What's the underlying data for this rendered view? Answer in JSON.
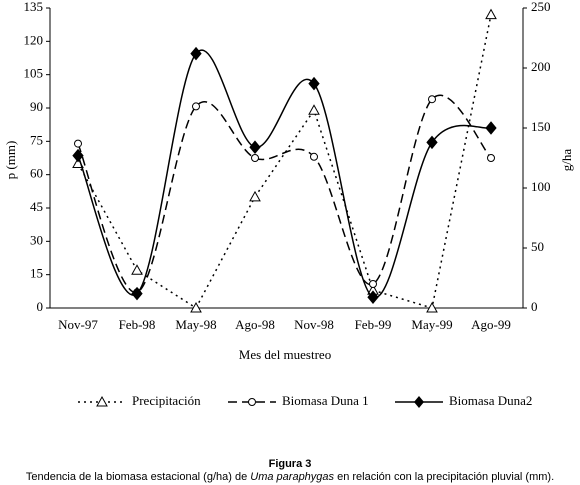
{
  "chart_data": {
    "type": "line",
    "categories": [
      "Nov-97",
      "Feb-98",
      "May-98",
      "Ago-98",
      "Nov-98",
      "Feb-99",
      "May-99",
      "Ago-99"
    ],
    "series": [
      {
        "name": "Precipitación",
        "color": "#000000",
        "style": "dotted",
        "marker": "triangle",
        "smooth": false,
        "values": [
          65,
          17,
          0,
          50,
          89,
          8,
          0,
          132
        ]
      },
      {
        "name": "Biomasa Duna 1",
        "color": "#000000",
        "style": "dashed",
        "marker": "circle",
        "smooth": true,
        "axis": "y2",
        "values": [
          137,
          13,
          168,
          125,
          126,
          20,
          174,
          125
        ]
      },
      {
        "name": "Biomasa Duna2",
        "color": "#000000",
        "style": "solid",
        "marker": "diamond",
        "smooth": true,
        "axis": "y2",
        "values": [
          127,
          12,
          212,
          134,
          187,
          9,
          138,
          150
        ]
      }
    ],
    "ylim": [
      0,
      135
    ],
    "yticks": [
      0,
      15,
      30,
      45,
      60,
      75,
      90,
      105,
      120,
      135
    ],
    "y2lim": [
      0,
      250
    ],
    "y2ticks": [
      0,
      50,
      100,
      150,
      200,
      250
    ],
    "ylabel": "p (mm)",
    "y2label": "g/ha",
    "xlabel": "Mes del muestreo",
    "legend": "bottom",
    "figure_label": "Figura 3",
    "caption": [
      "Tendencia de la biomasa estacional (g/ha) de ",
      "Uma paraphygas",
      " en relación con la precipitación pluvial (mm)."
    ]
  }
}
